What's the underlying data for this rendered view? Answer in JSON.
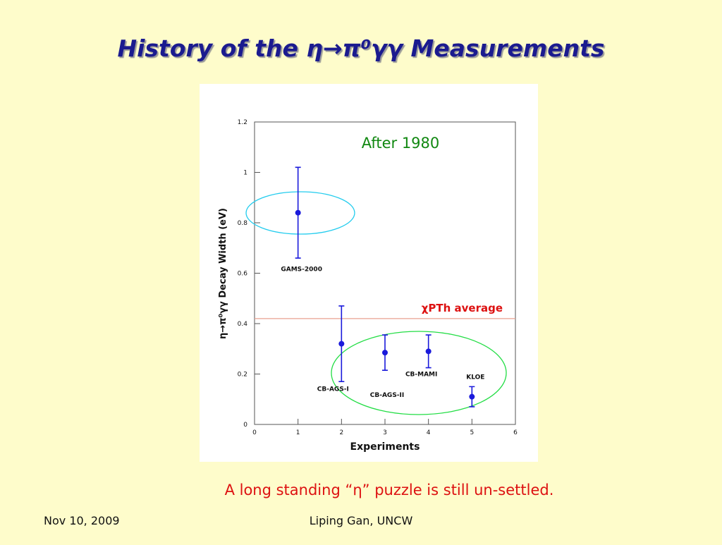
{
  "slide": {
    "title": "History of the η→π⁰γγ Measurements",
    "remark": "A long standing “η” puzzle is still un-settled.",
    "footer_left": "Nov 10, 2009",
    "footer_center": "Liping Gan, UNCW"
  },
  "chart_data": {
    "type": "scatter",
    "x_label": "Experiments",
    "y_label": "η→π⁰γγ  Decay Width (eV)",
    "annotation": "After 1980",
    "x": [
      1,
      2,
      3,
      4,
      5
    ],
    "point_labels": [
      "GAMS-2000",
      "CB-AGS-I",
      "CB-AGS-II",
      "CB-MAMI",
      "KLOE"
    ],
    "series": [
      {
        "color": "#1a1adb",
        "values": [
          0.84,
          0.32,
          0.285,
          0.29,
          0.11
        ],
        "errors": [
          0.18,
          0.15,
          0.07,
          0.065,
          0.04
        ]
      }
    ],
    "reference": {
      "value": 0.42,
      "label": "χPTh average",
      "color": "#e8a090",
      "label_color": "#dd1111"
    },
    "xlim": [
      0,
      6
    ],
    "ylim": [
      0,
      1.2
    ],
    "xticks": [
      0,
      1,
      2,
      3,
      4,
      5,
      6
    ],
    "yticks": [
      0,
      0.2,
      0.4,
      0.6,
      0.8,
      1,
      1.2
    ]
  }
}
